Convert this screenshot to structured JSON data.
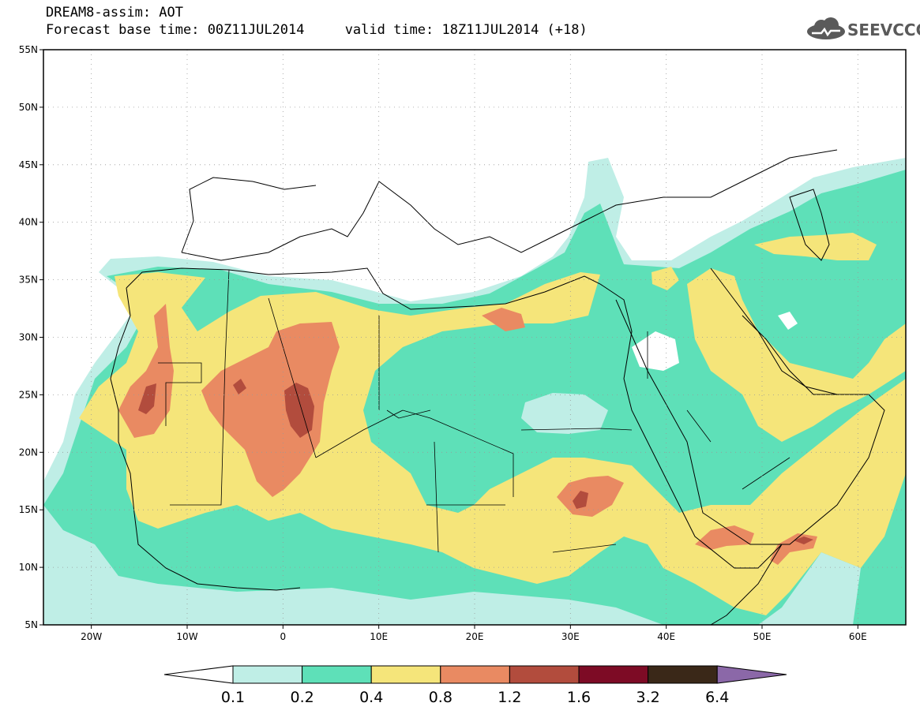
{
  "header": {
    "title": "DREAM8-assim: AOT",
    "subtitle": "Forecast base time: 00Z11JUL2014     valid time: 18Z11JUL2014 (+18)",
    "logo_text": "SEEVCCC"
  },
  "map": {
    "lon_range": [
      -25,
      65
    ],
    "lat_range": [
      5,
      55
    ],
    "lat_ticks": [
      {
        "value": 55,
        "label": "55N"
      },
      {
        "value": 50,
        "label": "50N"
      },
      {
        "value": 45,
        "label": "45N"
      },
      {
        "value": 40,
        "label": "40N"
      },
      {
        "value": 35,
        "label": "35N"
      },
      {
        "value": 30,
        "label": "30N"
      },
      {
        "value": 25,
        "label": "25N"
      },
      {
        "value": 20,
        "label": "20N"
      },
      {
        "value": 15,
        "label": "15N"
      },
      {
        "value": 10,
        "label": "10N"
      },
      {
        "value": 5,
        "label": "5N"
      }
    ],
    "lon_ticks": [
      {
        "value": -20,
        "label": "20W"
      },
      {
        "value": -10,
        "label": "10W"
      },
      {
        "value": 0,
        "label": "0"
      },
      {
        "value": 10,
        "label": "10E"
      },
      {
        "value": 20,
        "label": "20E"
      },
      {
        "value": 30,
        "label": "30E"
      },
      {
        "value": 40,
        "label": "40E"
      },
      {
        "value": 50,
        "label": "50E"
      },
      {
        "value": 60,
        "label": "60E"
      }
    ]
  },
  "colorbar": {
    "under_color": "#ffffff",
    "over_color": "#8b68a8",
    "bins": [
      {
        "color": "#bfeee6"
      },
      {
        "color": "#5ee0b8"
      },
      {
        "color": "#f5e57a"
      },
      {
        "color": "#e98a62"
      },
      {
        "color": "#b24c3d"
      },
      {
        "color": "#7d0b25"
      },
      {
        "color": "#3a2818"
      }
    ],
    "labels": [
      "0.1",
      "0.2",
      "0.4",
      "0.8",
      "1.2",
      "1.6",
      "3.2",
      "6.4"
    ]
  }
}
